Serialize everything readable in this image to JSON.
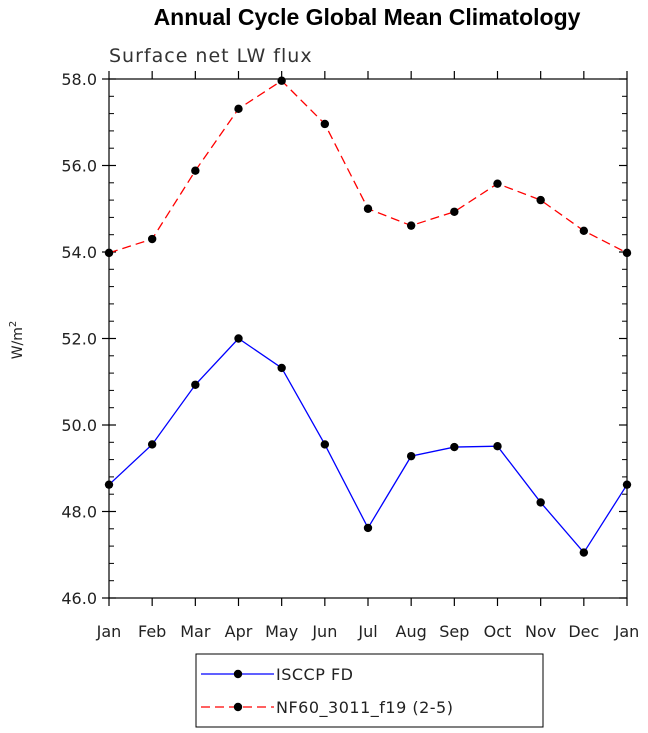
{
  "chart_data": {
    "type": "line",
    "title": "Annual Cycle Global Mean Climatology",
    "subtitle": "Surface net LW flux",
    "ylabel": "W/m",
    "ylabel_superscript": "2",
    "xlabel": "",
    "categories": [
      "Jan",
      "Feb",
      "Mar",
      "Apr",
      "May",
      "Jun",
      "Jul",
      "Aug",
      "Sep",
      "Oct",
      "Nov",
      "Dec",
      "Jan"
    ],
    "ylim": [
      46.0,
      58.0
    ],
    "yticks": [
      46.0,
      48.0,
      50.0,
      52.0,
      54.0,
      56.0,
      58.0
    ],
    "ytick_labels": [
      "46.0",
      "48.0",
      "50.0",
      "52.0",
      "54.0",
      "56.0",
      "58.0"
    ],
    "y_minor_step": 0.4,
    "grid": false,
    "legend_position": "bottom",
    "series": [
      {
        "name": "ISCCP FD",
        "color": "#0000ff",
        "dash": "solid",
        "marker": "filled-circle",
        "values": [
          48.62,
          49.55,
          50.93,
          52.0,
          51.32,
          49.55,
          47.62,
          49.28,
          49.49,
          49.51,
          48.21,
          47.05,
          48.62
        ]
      },
      {
        "name": "NF60_3011_f19 (2-5)",
        "color": "#ff0000",
        "dash": "dashed",
        "marker": "filled-circle",
        "values": [
          53.98,
          54.3,
          55.88,
          57.31,
          57.96,
          56.96,
          55.0,
          54.61,
          54.93,
          55.58,
          55.2,
          54.49,
          53.98
        ]
      }
    ]
  }
}
